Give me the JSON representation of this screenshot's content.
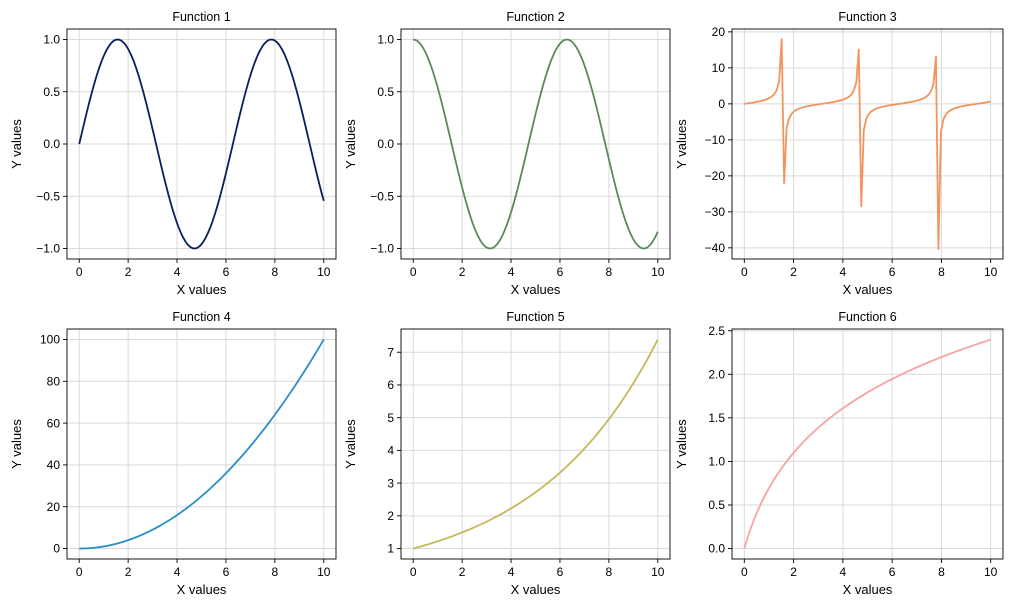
{
  "figure": {
    "background": "#ffffff",
    "grid_color": "#d9d9d9",
    "axis_color": "#000000"
  },
  "chart_data": [
    {
      "type": "line",
      "title": "Function 1",
      "xlabel": "X values",
      "ylabel": "Y values",
      "function": "sin",
      "color": "#0b1f5c",
      "xlim": [
        -0.5,
        10.5
      ],
      "ylim": [
        -1.1,
        1.1
      ],
      "xticks": [
        0,
        2,
        4,
        6,
        8,
        10
      ],
      "yticks": [
        -1.0,
        -0.5,
        0.0,
        0.5,
        1.0
      ],
      "xtick_labels": [
        "0",
        "2",
        "4",
        "6",
        "8",
        "10"
      ],
      "ytick_labels": [
        "−1.0",
        "−0.5",
        "0.0",
        "0.5",
        "1.0"
      ],
      "grid": true
    },
    {
      "type": "line",
      "title": "Function 2",
      "xlabel": "X values",
      "ylabel": "Y values",
      "function": "cos",
      "color": "#5a8a5a",
      "xlim": [
        -0.5,
        10.5
      ],
      "ylim": [
        -1.1,
        1.1
      ],
      "xticks": [
        0,
        2,
        4,
        6,
        8,
        10
      ],
      "yticks": [
        -1.0,
        -0.5,
        0.0,
        0.5,
        1.0
      ],
      "xtick_labels": [
        "0",
        "2",
        "4",
        "6",
        "8",
        "10"
      ],
      "ytick_labels": [
        "−1.0",
        "−0.5",
        "0.0",
        "0.5",
        "1.0"
      ],
      "grid": true
    },
    {
      "type": "line",
      "title": "Function 3",
      "xlabel": "X values",
      "ylabel": "Y values",
      "function": "tan",
      "color": "#f4935c",
      "xlim": [
        -0.5,
        10.5
      ],
      "ylim": [
        -43.1,
        20.8
      ],
      "xticks": [
        0,
        2,
        4,
        6,
        8,
        10
      ],
      "yticks": [
        -40,
        -30,
        -20,
        -10,
        0,
        10,
        20
      ],
      "xtick_labels": [
        "0",
        "2",
        "4",
        "6",
        "8",
        "10"
      ],
      "ytick_labels": [
        "−40",
        "−30",
        "−20",
        "−10",
        "0",
        "10",
        "20"
      ],
      "grid": true
    },
    {
      "type": "line",
      "title": "Function 4",
      "xlabel": "X values",
      "ylabel": "Y values",
      "function": "square",
      "color": "#2a8fc4",
      "xlim": [
        -0.5,
        10.5
      ],
      "ylim": [
        -5,
        105
      ],
      "xticks": [
        0,
        2,
        4,
        6,
        8,
        10
      ],
      "yticks": [
        0,
        20,
        40,
        60,
        80,
        100
      ],
      "xtick_labels": [
        "0",
        "2",
        "4",
        "6",
        "8",
        "10"
      ],
      "ytick_labels": [
        "0",
        "20",
        "40",
        "60",
        "80",
        "100"
      ],
      "grid": true
    },
    {
      "type": "line",
      "title": "Function 5",
      "xlabel": "X values",
      "ylabel": "Y values",
      "function": "exp_x_over_5",
      "color": "#c4b95a",
      "xlim": [
        -0.5,
        10.5
      ],
      "ylim": [
        0.68,
        7.71
      ],
      "xticks": [
        0,
        2,
        4,
        6,
        8,
        10
      ],
      "yticks": [
        1,
        2,
        3,
        4,
        5,
        6,
        7
      ],
      "xtick_labels": [
        "0",
        "2",
        "4",
        "6",
        "8",
        "10"
      ],
      "ytick_labels": [
        "1",
        "2",
        "3",
        "4",
        "5",
        "6",
        "7"
      ],
      "grid": true
    },
    {
      "type": "line",
      "title": "Function 6",
      "xlabel": "X values",
      "ylabel": "Y values",
      "function": "log1p",
      "color": "#f7a3a3",
      "xlim": [
        -0.5,
        10.5
      ],
      "ylim": [
        -0.12,
        2.52
      ],
      "xticks": [
        0,
        2,
        4,
        6,
        8,
        10
      ],
      "yticks": [
        0.0,
        0.5,
        1.0,
        1.5,
        2.0,
        2.5
      ],
      "xtick_labels": [
        "0",
        "2",
        "4",
        "6",
        "8",
        "10"
      ],
      "ytick_labels": [
        "0.0",
        "0.5",
        "1.0",
        "1.5",
        "2.0",
        "2.5"
      ],
      "grid": true
    }
  ]
}
